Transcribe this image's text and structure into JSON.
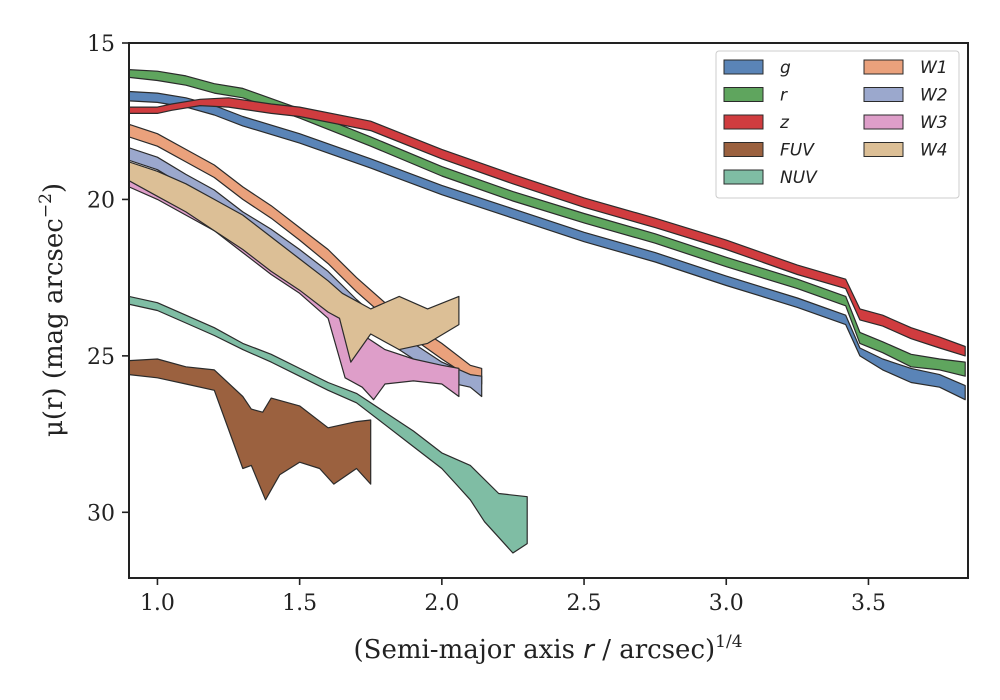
{
  "chart_data": {
    "type": "area",
    "xlabel_main": "(Semi-major axis ",
    "xlabel_var": "r",
    "xlabel_tail": " / arcsec)",
    "xlabel_exp": "1/4",
    "ylabel_main": "μ(r) (mag arcsec",
    "ylabel_exp": "−2",
    "ylabel_close": ")",
    "xlim": [
      0.9,
      3.85
    ],
    "ylim": [
      32.1,
      15
    ],
    "y_inverted": true,
    "xticks": [
      {
        "value": 1.0,
        "label": "1.0"
      },
      {
        "value": 1.5,
        "label": "1.5"
      },
      {
        "value": 2.0,
        "label": "2.0"
      },
      {
        "value": 2.5,
        "label": "2.5"
      },
      {
        "value": 3.0,
        "label": "3.0"
      },
      {
        "value": 3.5,
        "label": "3.5"
      }
    ],
    "yticks": [
      {
        "value": 15,
        "label": "15"
      },
      {
        "value": 20,
        "label": "20"
      },
      {
        "value": 25,
        "label": "25"
      },
      {
        "value": 30,
        "label": "30"
      }
    ],
    "grid": false,
    "legend_position": "top-right",
    "legend_columns": 2,
    "series": [
      {
        "name": "g",
        "color": "#5a84b7",
        "upper": [
          [
            0.9,
            16.55
          ],
          [
            1.0,
            16.6
          ],
          [
            1.1,
            16.75
          ],
          [
            1.2,
            17.0
          ],
          [
            1.3,
            17.35
          ],
          [
            1.5,
            17.9
          ],
          [
            1.75,
            18.7
          ],
          [
            2.0,
            19.55
          ],
          [
            2.25,
            20.3
          ],
          [
            2.5,
            21.05
          ],
          [
            2.75,
            21.7
          ],
          [
            3.0,
            22.45
          ],
          [
            3.25,
            23.15
          ],
          [
            3.42,
            23.7
          ],
          [
            3.47,
            24.75
          ],
          [
            3.55,
            25.1
          ],
          [
            3.65,
            25.4
          ],
          [
            3.75,
            25.6
          ],
          [
            3.84,
            25.95
          ]
        ],
        "lower": [
          [
            3.84,
            26.4
          ],
          [
            3.75,
            26.0
          ],
          [
            3.65,
            25.85
          ],
          [
            3.55,
            25.45
          ],
          [
            3.47,
            25.0
          ],
          [
            3.42,
            24.0
          ],
          [
            3.25,
            23.45
          ],
          [
            3.0,
            22.75
          ],
          [
            2.75,
            22.0
          ],
          [
            2.5,
            21.35
          ],
          [
            2.25,
            20.6
          ],
          [
            2.0,
            19.85
          ],
          [
            1.75,
            19.0
          ],
          [
            1.5,
            18.2
          ],
          [
            1.3,
            17.65
          ],
          [
            1.2,
            17.3
          ],
          [
            1.1,
            17.05
          ],
          [
            1.0,
            16.9
          ],
          [
            0.9,
            16.85
          ]
        ]
      },
      {
        "name": "r",
        "color": "#5fa55e",
        "upper": [
          [
            0.9,
            15.85
          ],
          [
            1.0,
            15.9
          ],
          [
            1.1,
            16.05
          ],
          [
            1.2,
            16.3
          ],
          [
            1.3,
            16.45
          ],
          [
            1.5,
            17.1
          ],
          [
            1.75,
            18.0
          ],
          [
            2.0,
            18.95
          ],
          [
            2.25,
            19.75
          ],
          [
            2.5,
            20.45
          ],
          [
            2.75,
            21.1
          ],
          [
            3.0,
            21.85
          ],
          [
            3.25,
            22.55
          ],
          [
            3.42,
            23.1
          ],
          [
            3.47,
            24.25
          ],
          [
            3.55,
            24.55
          ],
          [
            3.65,
            24.95
          ],
          [
            3.75,
            25.1
          ],
          [
            3.84,
            25.2
          ]
        ],
        "lower": [
          [
            3.84,
            25.65
          ],
          [
            3.75,
            25.45
          ],
          [
            3.65,
            25.35
          ],
          [
            3.55,
            24.9
          ],
          [
            3.47,
            24.6
          ],
          [
            3.42,
            23.4
          ],
          [
            3.25,
            22.85
          ],
          [
            3.0,
            22.15
          ],
          [
            2.75,
            21.4
          ],
          [
            2.5,
            20.75
          ],
          [
            2.25,
            20.05
          ],
          [
            2.0,
            19.25
          ],
          [
            1.75,
            18.3
          ],
          [
            1.5,
            17.4
          ],
          [
            1.3,
            16.75
          ],
          [
            1.2,
            16.6
          ],
          [
            1.1,
            16.35
          ],
          [
            1.0,
            16.2
          ],
          [
            0.9,
            16.1
          ]
        ]
      },
      {
        "name": "z",
        "color": "#d03c3f",
        "upper": [
          [
            0.9,
            17.05
          ],
          [
            1.0,
            17.05
          ],
          [
            1.05,
            16.95
          ],
          [
            1.15,
            16.8
          ],
          [
            1.25,
            16.75
          ],
          [
            1.4,
            16.95
          ],
          [
            1.5,
            17.05
          ],
          [
            1.75,
            17.5
          ],
          [
            2.0,
            18.4
          ],
          [
            2.25,
            19.2
          ],
          [
            2.5,
            19.95
          ],
          [
            2.75,
            20.6
          ],
          [
            3.0,
            21.3
          ],
          [
            3.25,
            22.1
          ],
          [
            3.42,
            22.55
          ],
          [
            3.47,
            23.5
          ],
          [
            3.55,
            23.7
          ],
          [
            3.65,
            24.1
          ],
          [
            3.75,
            24.4
          ],
          [
            3.84,
            24.7
          ]
        ],
        "lower": [
          [
            3.84,
            25.0
          ],
          [
            3.75,
            24.75
          ],
          [
            3.65,
            24.45
          ],
          [
            3.55,
            24.05
          ],
          [
            3.47,
            23.85
          ],
          [
            3.42,
            22.85
          ],
          [
            3.25,
            22.4
          ],
          [
            3.0,
            21.6
          ],
          [
            2.75,
            20.9
          ],
          [
            2.5,
            20.25
          ],
          [
            2.25,
            19.5
          ],
          [
            2.0,
            18.7
          ],
          [
            1.75,
            17.8
          ],
          [
            1.5,
            17.35
          ],
          [
            1.4,
            17.25
          ],
          [
            1.25,
            17.05
          ],
          [
            1.15,
            17.0
          ],
          [
            1.05,
            17.15
          ],
          [
            1.0,
            17.25
          ],
          [
            0.9,
            17.25
          ]
        ]
      },
      {
        "name": "FUV",
        "color": "#9b613f",
        "upper": [
          [
            0.9,
            25.15
          ],
          [
            1.0,
            25.1
          ],
          [
            1.1,
            25.35
          ],
          [
            1.2,
            25.45
          ],
          [
            1.3,
            26.3
          ],
          [
            1.33,
            26.7
          ],
          [
            1.37,
            26.8
          ],
          [
            1.4,
            26.35
          ],
          [
            1.5,
            26.6
          ],
          [
            1.6,
            27.3
          ],
          [
            1.7,
            27.1
          ],
          [
            1.75,
            27.05
          ]
        ],
        "lower": [
          [
            1.75,
            29.1
          ],
          [
            1.7,
            28.6
          ],
          [
            1.62,
            29.1
          ],
          [
            1.57,
            28.6
          ],
          [
            1.5,
            28.4
          ],
          [
            1.43,
            28.8
          ],
          [
            1.38,
            29.6
          ],
          [
            1.33,
            28.5
          ],
          [
            1.3,
            28.6
          ],
          [
            1.2,
            26.1
          ],
          [
            1.1,
            25.9
          ],
          [
            1.0,
            25.7
          ],
          [
            0.9,
            25.6
          ]
        ]
      },
      {
        "name": "NUV",
        "color": "#7fbda4",
        "upper": [
          [
            0.9,
            23.1
          ],
          [
            1.0,
            23.3
          ],
          [
            1.1,
            23.7
          ],
          [
            1.2,
            24.1
          ],
          [
            1.3,
            24.6
          ],
          [
            1.4,
            24.95
          ],
          [
            1.5,
            25.4
          ],
          [
            1.6,
            25.85
          ],
          [
            1.7,
            26.2
          ],
          [
            1.8,
            26.8
          ],
          [
            1.9,
            27.4
          ],
          [
            2.0,
            28.1
          ],
          [
            2.1,
            28.5
          ],
          [
            2.2,
            29.4
          ],
          [
            2.3,
            29.5
          ]
        ],
        "lower": [
          [
            2.3,
            31.0
          ],
          [
            2.25,
            31.3
          ],
          [
            2.2,
            30.8
          ],
          [
            2.15,
            30.3
          ],
          [
            2.1,
            29.6
          ],
          [
            2.05,
            29.1
          ],
          [
            2.0,
            28.6
          ],
          [
            1.9,
            27.9
          ],
          [
            1.8,
            27.2
          ],
          [
            1.7,
            26.5
          ],
          [
            1.6,
            26.1
          ],
          [
            1.5,
            25.65
          ],
          [
            1.4,
            25.2
          ],
          [
            1.3,
            24.8
          ],
          [
            1.2,
            24.35
          ],
          [
            1.1,
            23.95
          ],
          [
            1.0,
            23.55
          ],
          [
            0.9,
            23.35
          ]
        ]
      },
      {
        "name": "W1",
        "color": "#eaa17c",
        "upper": [
          [
            0.9,
            17.6
          ],
          [
            1.0,
            17.9
          ],
          [
            1.1,
            18.4
          ],
          [
            1.2,
            18.9
          ],
          [
            1.3,
            19.6
          ],
          [
            1.4,
            20.2
          ],
          [
            1.5,
            20.9
          ],
          [
            1.6,
            21.6
          ],
          [
            1.7,
            22.5
          ],
          [
            1.8,
            23.3
          ],
          [
            1.9,
            24.0
          ],
          [
            2.0,
            24.6
          ],
          [
            2.1,
            25.3
          ],
          [
            2.14,
            25.4
          ]
        ],
        "lower": [
          [
            2.14,
            25.9
          ],
          [
            2.1,
            25.7
          ],
          [
            2.0,
            25.1
          ],
          [
            1.9,
            24.45
          ],
          [
            1.8,
            23.75
          ],
          [
            1.7,
            22.95
          ],
          [
            1.6,
            22.05
          ],
          [
            1.5,
            21.3
          ],
          [
            1.4,
            20.6
          ],
          [
            1.3,
            20.0
          ],
          [
            1.2,
            19.3
          ],
          [
            1.1,
            18.8
          ],
          [
            1.0,
            18.3
          ],
          [
            0.9,
            18.0
          ]
        ]
      },
      {
        "name": "W2",
        "color": "#9ba8cd",
        "upper": [
          [
            0.9,
            18.35
          ],
          [
            1.0,
            18.65
          ],
          [
            1.1,
            19.2
          ],
          [
            1.2,
            19.7
          ],
          [
            1.3,
            20.4
          ],
          [
            1.4,
            20.95
          ],
          [
            1.5,
            21.6
          ],
          [
            1.6,
            22.3
          ],
          [
            1.7,
            23.2
          ],
          [
            1.8,
            24.0
          ],
          [
            1.9,
            24.6
          ],
          [
            2.0,
            25.2
          ],
          [
            2.1,
            25.6
          ],
          [
            2.14,
            25.65
          ]
        ],
        "lower": [
          [
            2.14,
            26.3
          ],
          [
            2.1,
            26.0
          ],
          [
            2.0,
            25.8
          ],
          [
            1.9,
            25.1
          ],
          [
            1.8,
            24.5
          ],
          [
            1.7,
            23.7
          ],
          [
            1.6,
            22.8
          ],
          [
            1.5,
            22.05
          ],
          [
            1.4,
            21.4
          ],
          [
            1.3,
            20.8
          ],
          [
            1.2,
            20.15
          ],
          [
            1.1,
            19.6
          ],
          [
            1.0,
            19.05
          ],
          [
            0.9,
            18.75
          ]
        ]
      },
      {
        "name": "W3",
        "color": "#de9ec9",
        "upper": [
          [
            0.9,
            19.25
          ],
          [
            1.0,
            19.6
          ],
          [
            1.1,
            20.1
          ],
          [
            1.2,
            20.6
          ],
          [
            1.3,
            21.2
          ],
          [
            1.4,
            21.9
          ],
          [
            1.5,
            22.5
          ],
          [
            1.6,
            23.2
          ],
          [
            1.7,
            24.2
          ],
          [
            1.8,
            24.8
          ],
          [
            1.9,
            25.1
          ],
          [
            2.0,
            25.3
          ],
          [
            2.06,
            25.4
          ]
        ],
        "lower": [
          [
            2.06,
            26.3
          ],
          [
            2.0,
            25.9
          ],
          [
            1.9,
            25.8
          ],
          [
            1.8,
            25.9
          ],
          [
            1.76,
            26.4
          ],
          [
            1.72,
            26.0
          ],
          [
            1.66,
            25.7
          ],
          [
            1.6,
            23.8
          ],
          [
            1.5,
            23.0
          ],
          [
            1.4,
            22.4
          ],
          [
            1.3,
            21.7
          ],
          [
            1.2,
            21.0
          ],
          [
            1.1,
            20.5
          ],
          [
            1.0,
            20.0
          ],
          [
            0.9,
            19.6
          ]
        ]
      },
      {
        "name": "W4",
        "color": "#dcbf96",
        "upper": [
          [
            0.9,
            18.8
          ],
          [
            1.0,
            19.1
          ],
          [
            1.1,
            19.5
          ],
          [
            1.2,
            20.0
          ],
          [
            1.3,
            20.5
          ],
          [
            1.4,
            21.2
          ],
          [
            1.5,
            21.9
          ],
          [
            1.6,
            22.6
          ],
          [
            1.65,
            23.0
          ],
          [
            1.75,
            23.5
          ],
          [
            1.85,
            23.1
          ],
          [
            1.95,
            23.5
          ],
          [
            2.06,
            23.1
          ]
        ],
        "lower": [
          [
            2.06,
            24.0
          ],
          [
            1.95,
            24.6
          ],
          [
            1.85,
            24.8
          ],
          [
            1.75,
            24.3
          ],
          [
            1.68,
            25.2
          ],
          [
            1.64,
            23.8
          ],
          [
            1.6,
            23.6
          ],
          [
            1.5,
            22.9
          ],
          [
            1.4,
            22.3
          ],
          [
            1.3,
            21.6
          ],
          [
            1.2,
            21.0
          ],
          [
            1.1,
            20.4
          ],
          [
            1.0,
            19.9
          ],
          [
            0.9,
            19.4
          ]
        ]
      }
    ]
  }
}
